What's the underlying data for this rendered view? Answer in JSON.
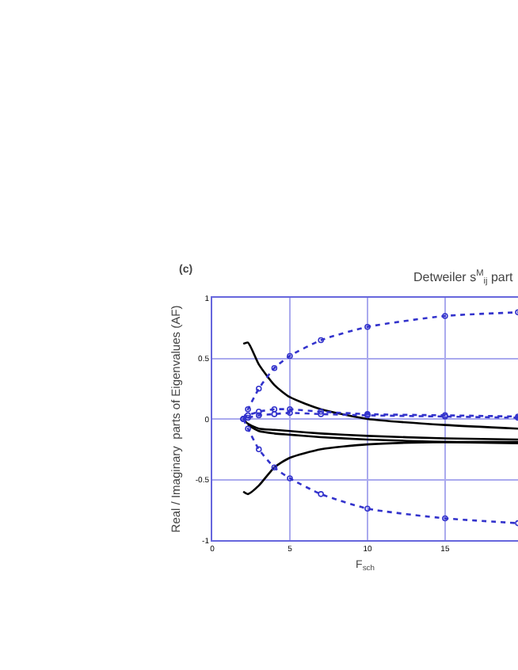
{
  "chart_data": {
    "type": "line",
    "title": "Detweiler s$^{M}$$_{ij}$ part",
    "annotations": [
      "(c)"
    ],
    "xlabel": "F$_{sch}$",
    "ylabel": "Real / Imaginary  parts of Eigenvalues (AF)",
    "xlim": [
      0,
      19.7
    ],
    "xticks": [
      0,
      5,
      10,
      15
    ],
    "ylim": [
      -1,
      1
    ],
    "yticks": [
      -1,
      -0.5,
      0,
      0.5,
      1
    ],
    "grid": true,
    "x": [
      2,
      2.3,
      3,
      4,
      5,
      7,
      10,
      15,
      19.7
    ],
    "series": [
      {
        "color": "#000000",
        "line_style": "solid",
        "marker": "none",
        "values": [
          0.62,
          0.63,
          0.45,
          0.28,
          0.18,
          0.08,
          0.0,
          -0.05,
          -0.08
        ]
      },
      {
        "color": "#000000",
        "line_style": "solid",
        "marker": "none",
        "values": [
          -0.6,
          -0.62,
          -0.55,
          -0.4,
          -0.32,
          -0.25,
          -0.21,
          -0.19,
          -0.19
        ]
      },
      {
        "color": "#000000",
        "line_style": "solid",
        "marker": "none",
        "values": [
          0,
          -0.04,
          -0.08,
          -0.09,
          -0.1,
          -0.12,
          -0.14,
          -0.16,
          -0.17
        ]
      },
      {
        "color": "#000000",
        "line_style": "solid",
        "marker": "none",
        "values": [
          null,
          -0.05,
          -0.1,
          -0.12,
          -0.13,
          -0.15,
          -0.17,
          -0.19,
          -0.2
        ]
      },
      {
        "color": "#3333cc",
        "line_style": "dotted",
        "marker": "circle",
        "values": [
          0,
          0.08,
          0.25,
          0.42,
          0.52,
          0.65,
          0.76,
          0.85,
          0.88
        ]
      },
      {
        "color": "#3333cc",
        "line_style": "dotted",
        "marker": "circle",
        "values": [
          0,
          -0.08,
          -0.25,
          -0.4,
          -0.49,
          -0.62,
          -0.74,
          -0.82,
          -0.86
        ]
      },
      {
        "color": "#3333cc",
        "line_style": "dotted",
        "marker": "circle",
        "values": [
          0,
          0.03,
          0.06,
          0.08,
          0.08,
          0.06,
          0.04,
          0.03,
          0.02
        ]
      },
      {
        "color": "#3333cc",
        "line_style": "dotted",
        "marker": "circle",
        "values": [
          null,
          0.01,
          0.03,
          0.04,
          0.05,
          0.04,
          0.03,
          0.02,
          0.01
        ]
      }
    ]
  }
}
